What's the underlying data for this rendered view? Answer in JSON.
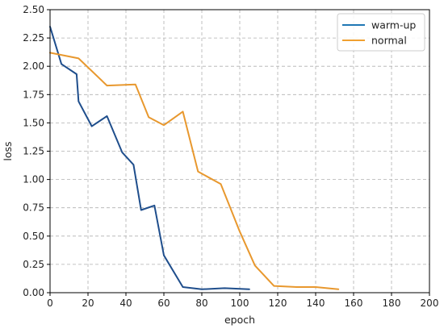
{
  "chart_data": {
    "type": "line",
    "title": "",
    "xlabel": "epoch",
    "ylabel": "loss",
    "xlim": [
      0,
      200
    ],
    "ylim": [
      0,
      2.5
    ],
    "xticks": [
      "0",
      "20",
      "40",
      "60",
      "80",
      "100",
      "120",
      "140",
      "160",
      "180",
      "200"
    ],
    "yticks": [
      "0.00",
      "0.25",
      "0.50",
      "0.75",
      "1.00",
      "1.25",
      "1.50",
      "1.75",
      "2.00",
      "2.25",
      "2.50"
    ],
    "grid": true,
    "grid_style": "dashed",
    "legend_position": "top-right",
    "series": [
      {
        "name": "warm-up",
        "legend_color": "#1f77b4",
        "line_color": "#1f4e8c",
        "points": [
          [
            0,
            2.35
          ],
          [
            6,
            2.02
          ],
          [
            14,
            1.93
          ],
          [
            15,
            1.69
          ],
          [
            22,
            1.47
          ],
          [
            30,
            1.56
          ],
          [
            38,
            1.24
          ],
          [
            44,
            1.13
          ],
          [
            48,
            0.73
          ],
          [
            55,
            0.77
          ],
          [
            60,
            0.33
          ],
          [
            70,
            0.05
          ],
          [
            80,
            0.03
          ],
          [
            92,
            0.04
          ],
          [
            105,
            0.03
          ]
        ]
      },
      {
        "name": "normal",
        "legend_color": "#f0a030",
        "line_color": "#e8982e",
        "points": [
          [
            0,
            2.12
          ],
          [
            15,
            2.07
          ],
          [
            30,
            1.83
          ],
          [
            45,
            1.84
          ],
          [
            52,
            1.55
          ],
          [
            60,
            1.48
          ],
          [
            70,
            1.6
          ],
          [
            78,
            1.07
          ],
          [
            90,
            0.96
          ],
          [
            100,
            0.54
          ],
          [
            108,
            0.24
          ],
          [
            118,
            0.06
          ],
          [
            130,
            0.05
          ],
          [
            140,
            0.05
          ],
          [
            152,
            0.03
          ]
        ]
      }
    ]
  }
}
